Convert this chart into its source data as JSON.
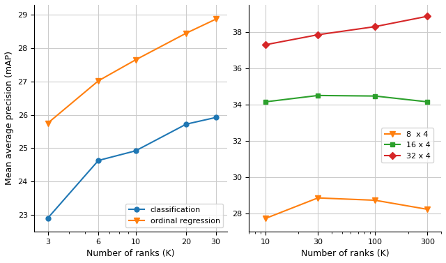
{
  "left": {
    "classification": {
      "x": [
        3,
        6,
        10,
        20,
        30
      ],
      "y": [
        22.9,
        24.63,
        24.92,
        25.72,
        25.92
      ]
    },
    "ordinal_regression": {
      "x": [
        3,
        6,
        10,
        20,
        30
      ],
      "y": [
        25.75,
        27.02,
        27.65,
        28.45,
        28.87
      ]
    },
    "xlabel": "Number of ranks (K)",
    "ylabel": "Mean average precision (mAP)",
    "ylim": [
      22.5,
      29.3
    ],
    "xlim": [
      2.5,
      35
    ],
    "yticks": [
      23,
      24,
      25,
      26,
      27,
      28,
      29
    ],
    "xticks": [
      3,
      6,
      10,
      20,
      30
    ]
  },
  "right": {
    "8x4": {
      "x": [
        10,
        30,
        100,
        300
      ],
      "y": [
        27.72,
        28.85,
        28.72,
        28.22
      ]
    },
    "16x4": {
      "x": [
        10,
        30,
        100,
        300
      ],
      "y": [
        34.15,
        34.5,
        34.47,
        34.15
      ]
    },
    "32x4": {
      "x": [
        10,
        30,
        100,
        300
      ],
      "y": [
        37.3,
        37.85,
        38.3,
        38.87
      ]
    },
    "xlabel": "Number of ranks (K)",
    "ylim": [
      27.0,
      39.5
    ],
    "xlim": [
      7,
      400
    ],
    "yticks": [
      28,
      30,
      32,
      34,
      36,
      38
    ],
    "xticks": [
      10,
      30,
      100,
      300
    ]
  },
  "colors": {
    "classification": "#1f77b4",
    "ordinal_regression": "#ff7f0e",
    "8x4": "#ff7f0e",
    "16x4": "#2ca02c",
    "32x4": "#d62728"
  },
  "background_color": "#ffffff",
  "grid_color": "#cccccc"
}
